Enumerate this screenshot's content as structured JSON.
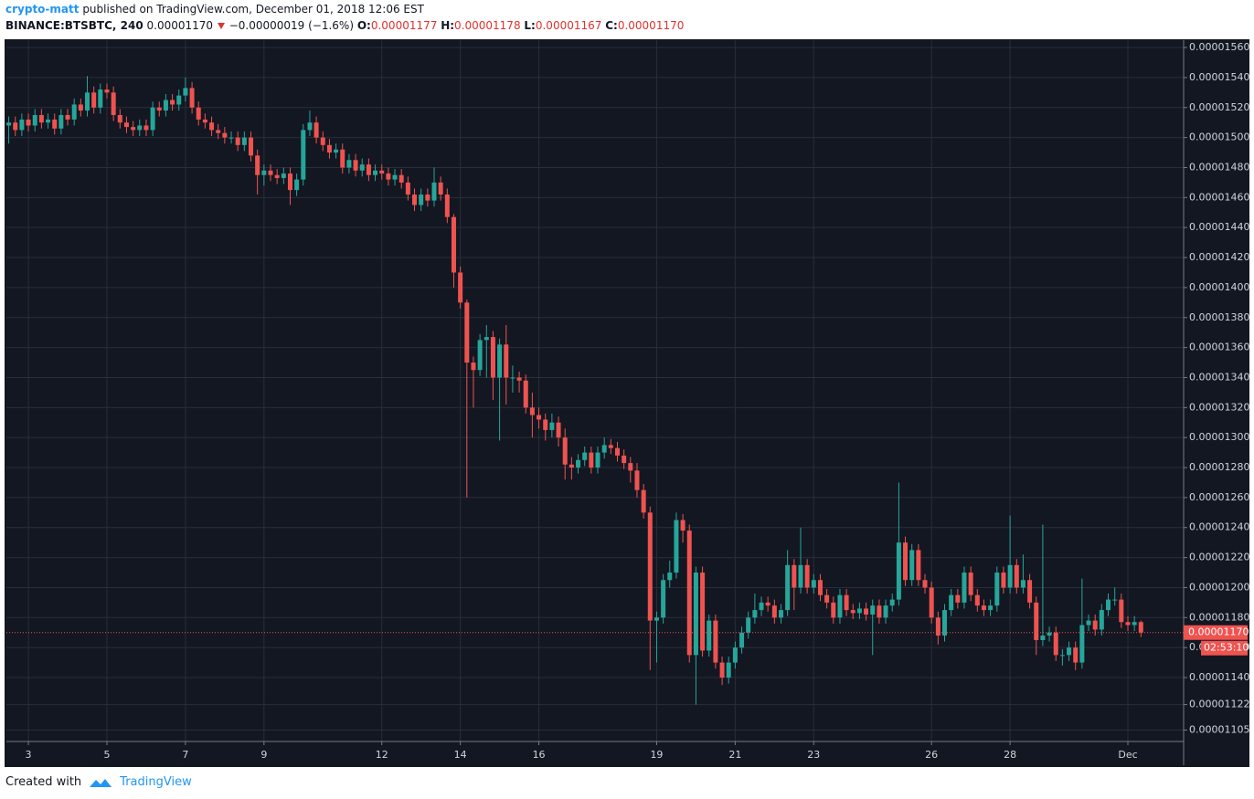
{
  "header": {
    "author": "crypto-matt",
    "published": "published on TradingView.com, December 01, 2018 12:06 EST",
    "symbol": "BINANCE:BTSBTC, 240",
    "last": "0.00001170",
    "change": "−0.00000019 (−1.6%)",
    "o_label": "O:",
    "o_value": "0.00001177",
    "h_label": "H:",
    "h_value": "0.00001178",
    "l_label": "L:",
    "l_value": "0.00001167",
    "c_label": "C:",
    "c_value": "0.00001170"
  },
  "footer": {
    "created": "Created with",
    "brand": "TradingView"
  },
  "chart_data": {
    "type": "candlestick",
    "up_color": "#26a69a",
    "down_color": "#ef5350",
    "grid": true,
    "xlim": [
      2.44,
      32.42
    ],
    "ylim": [
      1.0974e-05,
      1.5649e-05
    ],
    "xticks": [
      3,
      5,
      7,
      9,
      12,
      14,
      16,
      19,
      21,
      23,
      26,
      28,
      {
        "value": 31,
        "label": "Dec"
      }
    ],
    "yticks": [
      {
        "value": 1.56e-05,
        "label": "0.00001560"
      },
      {
        "value": 1.54e-05,
        "label": "0.00001540"
      },
      {
        "value": 1.52e-05,
        "label": "0.00001520"
      },
      {
        "value": 1.5e-05,
        "label": "0.00001500"
      },
      {
        "value": 1.48e-05,
        "label": "0.00001480"
      },
      {
        "value": 1.46e-05,
        "label": "0.00001460"
      },
      {
        "value": 1.44e-05,
        "label": "0.00001440"
      },
      {
        "value": 1.42e-05,
        "label": "0.00001420"
      },
      {
        "value": 1.4e-05,
        "label": "0.00001400"
      },
      {
        "value": 1.38e-05,
        "label": "0.00001380"
      },
      {
        "value": 1.36e-05,
        "label": "0.00001360"
      },
      {
        "value": 1.34e-05,
        "label": "0.00001340"
      },
      {
        "value": 1.32e-05,
        "label": "0.00001320"
      },
      {
        "value": 1.3e-05,
        "label": "0.00001300"
      },
      {
        "value": 1.28e-05,
        "label": "0.00001280"
      },
      {
        "value": 1.26e-05,
        "label": "0.00001260"
      },
      {
        "value": 1.24e-05,
        "label": "0.00001240"
      },
      {
        "value": 1.22e-05,
        "label": "0.00001220"
      },
      {
        "value": 1.2e-05,
        "label": "0.00001200"
      },
      {
        "value": 1.18e-05,
        "label": "0.00001180"
      },
      {
        "value": 1.16e-05,
        "label": "0.00001160"
      },
      {
        "value": 1.14e-05,
        "label": "0.00001140"
      },
      {
        "value": 1.122e-05,
        "label": "0.00001122"
      },
      {
        "value": 1.105e-05,
        "label": "0.00001105"
      }
    ],
    "price_line": {
      "value": 1.17e-05,
      "label": "0.00001170"
    },
    "countdown": "02:53:10",
    "x": [
      2.5,
      2.667,
      2.833,
      3,
      3.167,
      3.333,
      3.5,
      3.667,
      3.833,
      4,
      4.167,
      4.333,
      4.5,
      4.667,
      4.833,
      5,
      5.167,
      5.333,
      5.5,
      5.667,
      5.833,
      6,
      6.167,
      6.333,
      6.5,
      6.667,
      6.833,
      7,
      7.167,
      7.333,
      7.5,
      7.667,
      7.833,
      8,
      8.167,
      8.333,
      8.5,
      8.667,
      8.833,
      9,
      9.167,
      9.333,
      9.5,
      9.667,
      9.833,
      10,
      10.167,
      10.333,
      10.5,
      10.667,
      10.833,
      11,
      11.167,
      11.333,
      11.5,
      11.667,
      11.833,
      12,
      12.167,
      12.333,
      12.5,
      12.667,
      12.833,
      13,
      13.167,
      13.333,
      13.5,
      13.667,
      13.833,
      14,
      14.167,
      14.333,
      14.5,
      14.667,
      14.833,
      15,
      15.167,
      15.333,
      15.5,
      15.667,
      15.833,
      16,
      16.167,
      16.333,
      16.5,
      16.667,
      16.833,
      17,
      17.167,
      17.333,
      17.5,
      17.667,
      17.833,
      18,
      18.167,
      18.333,
      18.5,
      18.667,
      18.833,
      19,
      19.167,
      19.333,
      19.5,
      19.667,
      19.833,
      20,
      20.167,
      20.333,
      20.5,
      20.667,
      20.833,
      21,
      21.167,
      21.333,
      21.5,
      21.667,
      21.833,
      22,
      22.167,
      22.333,
      22.5,
      22.667,
      22.833,
      23,
      23.167,
      23.333,
      23.5,
      23.667,
      23.833,
      24,
      24.167,
      24.333,
      24.5,
      24.667,
      24.833,
      25,
      25.167,
      25.333,
      25.5,
      25.667,
      25.833,
      26,
      26.167,
      26.333,
      26.5,
      26.667,
      26.833,
      27,
      27.167,
      27.333,
      27.5,
      27.667,
      27.833,
      28,
      28.167,
      28.333,
      28.5,
      28.667,
      28.833,
      29,
      29.167,
      29.333,
      29.5,
      29.667,
      29.833,
      30,
      30.167,
      30.333,
      30.5,
      30.667,
      30.833,
      31,
      31.167,
      31.333
    ],
    "open": [
      1.508e-05,
      1.51e-05,
      1.505e-05,
      1.512e-05,
      1.508e-05,
      1.515e-05,
      1.51e-05,
      1.512e-05,
      1.506e-05,
      1.515e-05,
      1.512e-05,
      1.522e-05,
      1.518e-05,
      1.53e-05,
      1.52e-05,
      1.532e-05,
      1.53e-05,
      1.515e-05,
      1.51e-05,
      1.507e-05,
      1.505e-05,
      1.508e-05,
      1.505e-05,
      1.52e-05,
      1.518e-05,
      1.525e-05,
      1.522e-05,
      1.528e-05,
      1.533e-05,
      1.52e-05,
      1.512e-05,
      1.51e-05,
      1.505e-05,
      1.503e-05,
      1.5e-05,
      1.5e-05,
      1.495e-05,
      1.5e-05,
      1.488e-05,
      1.475e-05,
      1.478e-05,
      1.475e-05,
      1.473e-05,
      1.476e-05,
      1.465e-05,
      1.472e-05,
      1.505e-05,
      1.51e-05,
      1.5e-05,
      1.495e-05,
      1.49e-05,
      1.492e-05,
      1.48e-05,
      1.485e-05,
      1.478e-05,
      1.482e-05,
      1.475e-05,
      1.478e-05,
      1.476e-05,
      1.472e-05,
      1.475e-05,
      1.47e-05,
      1.462e-05,
      1.455e-05,
      1.462e-05,
      1.458e-05,
      1.47e-05,
      1.462e-05,
      1.447e-05,
      1.41e-05,
      1.39e-05,
      1.35e-05,
      1.345e-05,
      1.365e-05,
      1.367e-05,
      1.34e-05,
      1.362e-05,
      1.34e-05,
      1.34e-05,
      1.338e-05,
      1.32e-05,
      1.315e-05,
      1.312e-05,
      1.305e-05,
      1.31e-05,
      1.3e-05,
      1.282e-05,
      1.28e-05,
      1.285e-05,
      1.29e-05,
      1.28e-05,
      1.29e-05,
      1.295e-05,
      1.293e-05,
      1.288e-05,
      1.283e-05,
      1.278e-05,
      1.265e-05,
      1.25e-05,
      1.178e-05,
      1.18e-05,
      1.205e-05,
      1.21e-05,
      1.245e-05,
      1.238e-05,
      1.155e-05,
      1.21e-05,
      1.158e-05,
      1.178e-05,
      1.15e-05,
      1.14e-05,
      1.15e-05,
      1.16e-05,
      1.17e-05,
      1.18e-05,
      1.185e-05,
      1.19e-05,
      1.188e-05,
      1.18e-05,
      1.185e-05,
      1.215e-05,
      1.2e-05,
      1.215e-05,
      1.2e-05,
      1.205e-05,
      1.195e-05,
      1.19e-05,
      1.18e-05,
      1.195e-05,
      1.185e-05,
      1.183e-05,
      1.186e-05,
      1.182e-05,
      1.188e-05,
      1.18e-05,
      1.188e-05,
      1.192e-05,
      1.23e-05,
      1.205e-05,
      1.225e-05,
      1.205e-05,
      1.2e-05,
      1.18e-05,
      1.168e-05,
      1.185e-05,
      1.195e-05,
      1.19e-05,
      1.21e-05,
      1.195e-05,
      1.188e-05,
      1.185e-05,
      1.188e-05,
      1.21e-05,
      1.2e-05,
      1.215e-05,
      1.2e-05,
      1.205e-05,
      1.19e-05,
      1.165e-05,
      1.168e-05,
      1.17e-05,
      1.155e-05,
      1.155e-05,
      1.16e-05,
      1.15e-05,
      1.175e-05,
      1.178e-05,
      1.172e-05,
      1.185e-05,
      1.192e-05,
      1.192e-05,
      1.177e-05,
      1.175e-05,
      1.177e-05
    ],
    "high": [
      1.514e-05,
      1.514e-05,
      1.516e-05,
      1.516e-05,
      1.519e-05,
      1.519e-05,
      1.516e-05,
      1.516e-05,
      1.519e-05,
      1.519e-05,
      1.526e-05,
      1.526e-05,
      1.541e-05,
      1.534e-05,
      1.536e-05,
      1.536e-05,
      1.534e-05,
      1.519e-05,
      1.514e-05,
      1.511e-05,
      1.512e-05,
      1.512e-05,
      1.524e-05,
      1.524e-05,
      1.529e-05,
      1.529e-05,
      1.532e-05,
      1.54e-05,
      1.537e-05,
      1.524e-05,
      1.516e-05,
      1.514e-05,
      1.509e-05,
      1.507e-05,
      1.504e-05,
      1.504e-05,
      1.504e-05,
      1.504e-05,
      1.492e-05,
      1.482e-05,
      1.482e-05,
      1.479e-05,
      1.48e-05,
      1.48e-05,
      1.476e-05,
      1.509e-05,
      1.518e-05,
      1.514e-05,
      1.504e-05,
      1.499e-05,
      1.496e-05,
      1.496e-05,
      1.489e-05,
      1.489e-05,
      1.486e-05,
      1.486e-05,
      1.482e-05,
      1.482e-05,
      1.48e-05,
      1.479e-05,
      1.479e-05,
      1.474e-05,
      1.466e-05,
      1.466e-05,
      1.466e-05,
      1.48e-05,
      1.474e-05,
      1.466e-05,
      1.449e-05,
      1.414e-05,
      1.392e-05,
      1.354e-05,
      1.369e-05,
      1.375e-05,
      1.371e-05,
      1.366e-05,
      1.375e-05,
      1.348e-05,
      1.344e-05,
      1.342e-05,
      1.33e-05,
      1.32e-05,
      1.316e-05,
      1.316e-05,
      1.314e-05,
      1.306e-05,
      1.287e-05,
      1.289e-05,
      1.294e-05,
      1.294e-05,
      1.294e-05,
      1.3e-05,
      1.299e-05,
      1.297e-05,
      1.292e-05,
      1.287e-05,
      1.283e-05,
      1.269e-05,
      1.254e-05,
      1.184e-05,
      1.209e-05,
      1.218e-05,
      1.25e-05,
      1.249e-05,
      1.242e-05,
      1.214e-05,
      1.214e-05,
      1.182e-05,
      1.182e-05,
      1.154e-05,
      1.154e-05,
      1.164e-05,
      1.174e-05,
      1.184e-05,
      1.196e-05,
      1.194e-05,
      1.194e-05,
      1.192e-05,
      1.189e-05,
      1.225e-05,
      1.219e-05,
      1.24e-05,
      1.219e-05,
      1.209e-05,
      1.209e-05,
      1.199e-05,
      1.194e-05,
      1.199e-05,
      1.199e-05,
      1.189e-05,
      1.19e-05,
      1.19e-05,
      1.192e-05,
      1.192e-05,
      1.192e-05,
      1.196e-05,
      1.27e-05,
      1.234e-05,
      1.229e-05,
      1.229e-05,
      1.209e-05,
      1.204e-05,
      1.184e-05,
      1.189e-05,
      1.199e-05,
      1.199e-05,
      1.214e-05,
      1.214e-05,
      1.199e-05,
      1.192e-05,
      1.192e-05,
      1.214e-05,
      1.214e-05,
      1.248e-05,
      1.219e-05,
      1.222e-05,
      1.209e-05,
      1.194e-05,
      1.242e-05,
      1.174e-05,
      1.174e-05,
      1.159e-05,
      1.164e-05,
      1.164e-05,
      1.206e-05,
      1.182e-05,
      1.182e-05,
      1.189e-05,
      1.196e-05,
      1.2e-05,
      1.196e-05,
      1.181e-05,
      1.181e-05,
      1.178e-05
    ],
    "low": [
      1.496e-05,
      1.501e-05,
      1.501e-05,
      1.504e-05,
      1.504e-05,
      1.506e-05,
      1.506e-05,
      1.502e-05,
      1.502e-05,
      1.508e-05,
      1.508e-05,
      1.514e-05,
      1.514e-05,
      1.516e-05,
      1.516e-05,
      1.526e-05,
      1.511e-05,
      1.506e-05,
      1.503e-05,
      1.501e-05,
      1.501e-05,
      1.501e-05,
      1.501e-05,
      1.514e-05,
      1.514e-05,
      1.518e-05,
      1.518e-05,
      1.524e-05,
      1.516e-05,
      1.508e-05,
      1.506e-05,
      1.501e-05,
      1.499e-05,
      1.496e-05,
      1.496e-05,
      1.491e-05,
      1.491e-05,
      1.484e-05,
      1.462e-05,
      1.468e-05,
      1.471e-05,
      1.469e-05,
      1.469e-05,
      1.455e-05,
      1.461e-05,
      1.468e-05,
      1.501e-05,
      1.496e-05,
      1.491e-05,
      1.486e-05,
      1.486e-05,
      1.476e-05,
      1.476e-05,
      1.474e-05,
      1.474e-05,
      1.471e-05,
      1.471e-05,
      1.472e-05,
      1.468e-05,
      1.468e-05,
      1.466e-05,
      1.458e-05,
      1.451e-05,
      1.451e-05,
      1.454e-05,
      1.454e-05,
      1.458e-05,
      1.443e-05,
      1.4e-05,
      1.386e-05,
      1.26e-05,
      1.32e-05,
      1.341e-05,
      1.34e-05,
      1.325e-05,
      1.298e-05,
      1.322e-05,
      1.33e-05,
      1.33e-05,
      1.316e-05,
      1.3e-05,
      1.306e-05,
      1.298e-05,
      1.3e-05,
      1.294e-05,
      1.272e-05,
      1.272e-05,
      1.276e-05,
      1.281e-05,
      1.276e-05,
      1.276e-05,
      1.286e-05,
      1.289e-05,
      1.284e-05,
      1.279e-05,
      1.27e-05,
      1.26e-05,
      1.246e-05,
      1.145e-05,
      1.15e-05,
      1.176e-05,
      1.2e-05,
      1.206e-05,
      1.23e-05,
      1.15e-05,
      1.122e-05,
      1.154e-05,
      1.154e-05,
      1.146e-05,
      1.135e-05,
      1.136e-05,
      1.146e-05,
      1.156e-05,
      1.166e-05,
      1.176e-05,
      1.181e-05,
      1.184e-05,
      1.176e-05,
      1.176e-05,
      1.181e-05,
      1.185e-05,
      1.196e-05,
      1.196e-05,
      1.196e-05,
      1.191e-05,
      1.186e-05,
      1.176e-05,
      1.176e-05,
      1.181e-05,
      1.179e-05,
      1.179e-05,
      1.178e-05,
      1.155e-05,
      1.176e-05,
      1.176e-05,
      1.184e-05,
      1.188e-05,
      1.201e-05,
      1.201e-05,
      1.201e-05,
      1.196e-05,
      1.176e-05,
      1.162e-05,
      1.164e-05,
      1.181e-05,
      1.186e-05,
      1.186e-05,
      1.191e-05,
      1.184e-05,
      1.181e-05,
      1.181e-05,
      1.184e-05,
      1.196e-05,
      1.196e-05,
      1.196e-05,
      1.196e-05,
      1.186e-05,
      1.155e-05,
      1.161e-05,
      1.164e-05,
      1.151e-05,
      1.148e-05,
      1.151e-05,
      1.145e-05,
      1.146e-05,
      1.171e-05,
      1.168e-05,
      1.168e-05,
      1.181e-05,
      1.188e-05,
      1.173e-05,
      1.171e-05,
      1.171e-05,
      1.167e-05
    ],
    "close": [
      1.51e-05,
      1.505e-05,
      1.512e-05,
      1.508e-05,
      1.515e-05,
      1.51e-05,
      1.512e-05,
      1.506e-05,
      1.515e-05,
      1.512e-05,
      1.522e-05,
      1.518e-05,
      1.53e-05,
      1.52e-05,
      1.532e-05,
      1.53e-05,
      1.515e-05,
      1.51e-05,
      1.507e-05,
      1.505e-05,
      1.508e-05,
      1.505e-05,
      1.52e-05,
      1.518e-05,
      1.525e-05,
      1.522e-05,
      1.528e-05,
      1.533e-05,
      1.52e-05,
      1.512e-05,
      1.51e-05,
      1.505e-05,
      1.503e-05,
      1.5e-05,
      1.5e-05,
      1.495e-05,
      1.5e-05,
      1.488e-05,
      1.475e-05,
      1.478e-05,
      1.475e-05,
      1.473e-05,
      1.476e-05,
      1.465e-05,
      1.472e-05,
      1.505e-05,
      1.51e-05,
      1.5e-05,
      1.495e-05,
      1.49e-05,
      1.492e-05,
      1.48e-05,
      1.485e-05,
      1.478e-05,
      1.482e-05,
      1.475e-05,
      1.478e-05,
      1.476e-05,
      1.472e-05,
      1.475e-05,
      1.47e-05,
      1.462e-05,
      1.455e-05,
      1.462e-05,
      1.458e-05,
      1.47e-05,
      1.462e-05,
      1.447e-05,
      1.41e-05,
      1.39e-05,
      1.35e-05,
      1.345e-05,
      1.365e-05,
      1.367e-05,
      1.34e-05,
      1.362e-05,
      1.34e-05,
      1.34e-05,
      1.338e-05,
      1.32e-05,
      1.315e-05,
      1.312e-05,
      1.305e-05,
      1.31e-05,
      1.3e-05,
      1.282e-05,
      1.28e-05,
      1.285e-05,
      1.29e-05,
      1.28e-05,
      1.29e-05,
      1.295e-05,
      1.293e-05,
      1.288e-05,
      1.283e-05,
      1.278e-05,
      1.265e-05,
      1.25e-05,
      1.178e-05,
      1.18e-05,
      1.205e-05,
      1.21e-05,
      1.245e-05,
      1.238e-05,
      1.155e-05,
      1.21e-05,
      1.158e-05,
      1.178e-05,
      1.15e-05,
      1.14e-05,
      1.15e-05,
      1.16e-05,
      1.17e-05,
      1.18e-05,
      1.185e-05,
      1.19e-05,
      1.188e-05,
      1.18e-05,
      1.185e-05,
      1.215e-05,
      1.2e-05,
      1.215e-05,
      1.2e-05,
      1.205e-05,
      1.195e-05,
      1.19e-05,
      1.18e-05,
      1.195e-05,
      1.185e-05,
      1.183e-05,
      1.186e-05,
      1.182e-05,
      1.188e-05,
      1.18e-05,
      1.188e-05,
      1.192e-05,
      1.23e-05,
      1.205e-05,
      1.225e-05,
      1.205e-05,
      1.2e-05,
      1.18e-05,
      1.168e-05,
      1.185e-05,
      1.195e-05,
      1.19e-05,
      1.21e-05,
      1.195e-05,
      1.188e-05,
      1.185e-05,
      1.188e-05,
      1.21e-05,
      1.2e-05,
      1.215e-05,
      1.2e-05,
      1.205e-05,
      1.19e-05,
      1.165e-05,
      1.168e-05,
      1.17e-05,
      1.155e-05,
      1.155e-05,
      1.16e-05,
      1.15e-05,
      1.175e-05,
      1.178e-05,
      1.172e-05,
      1.185e-05,
      1.192e-05,
      1.192e-05,
      1.177e-05,
      1.175e-05,
      1.177e-05,
      1.17e-05
    ]
  }
}
